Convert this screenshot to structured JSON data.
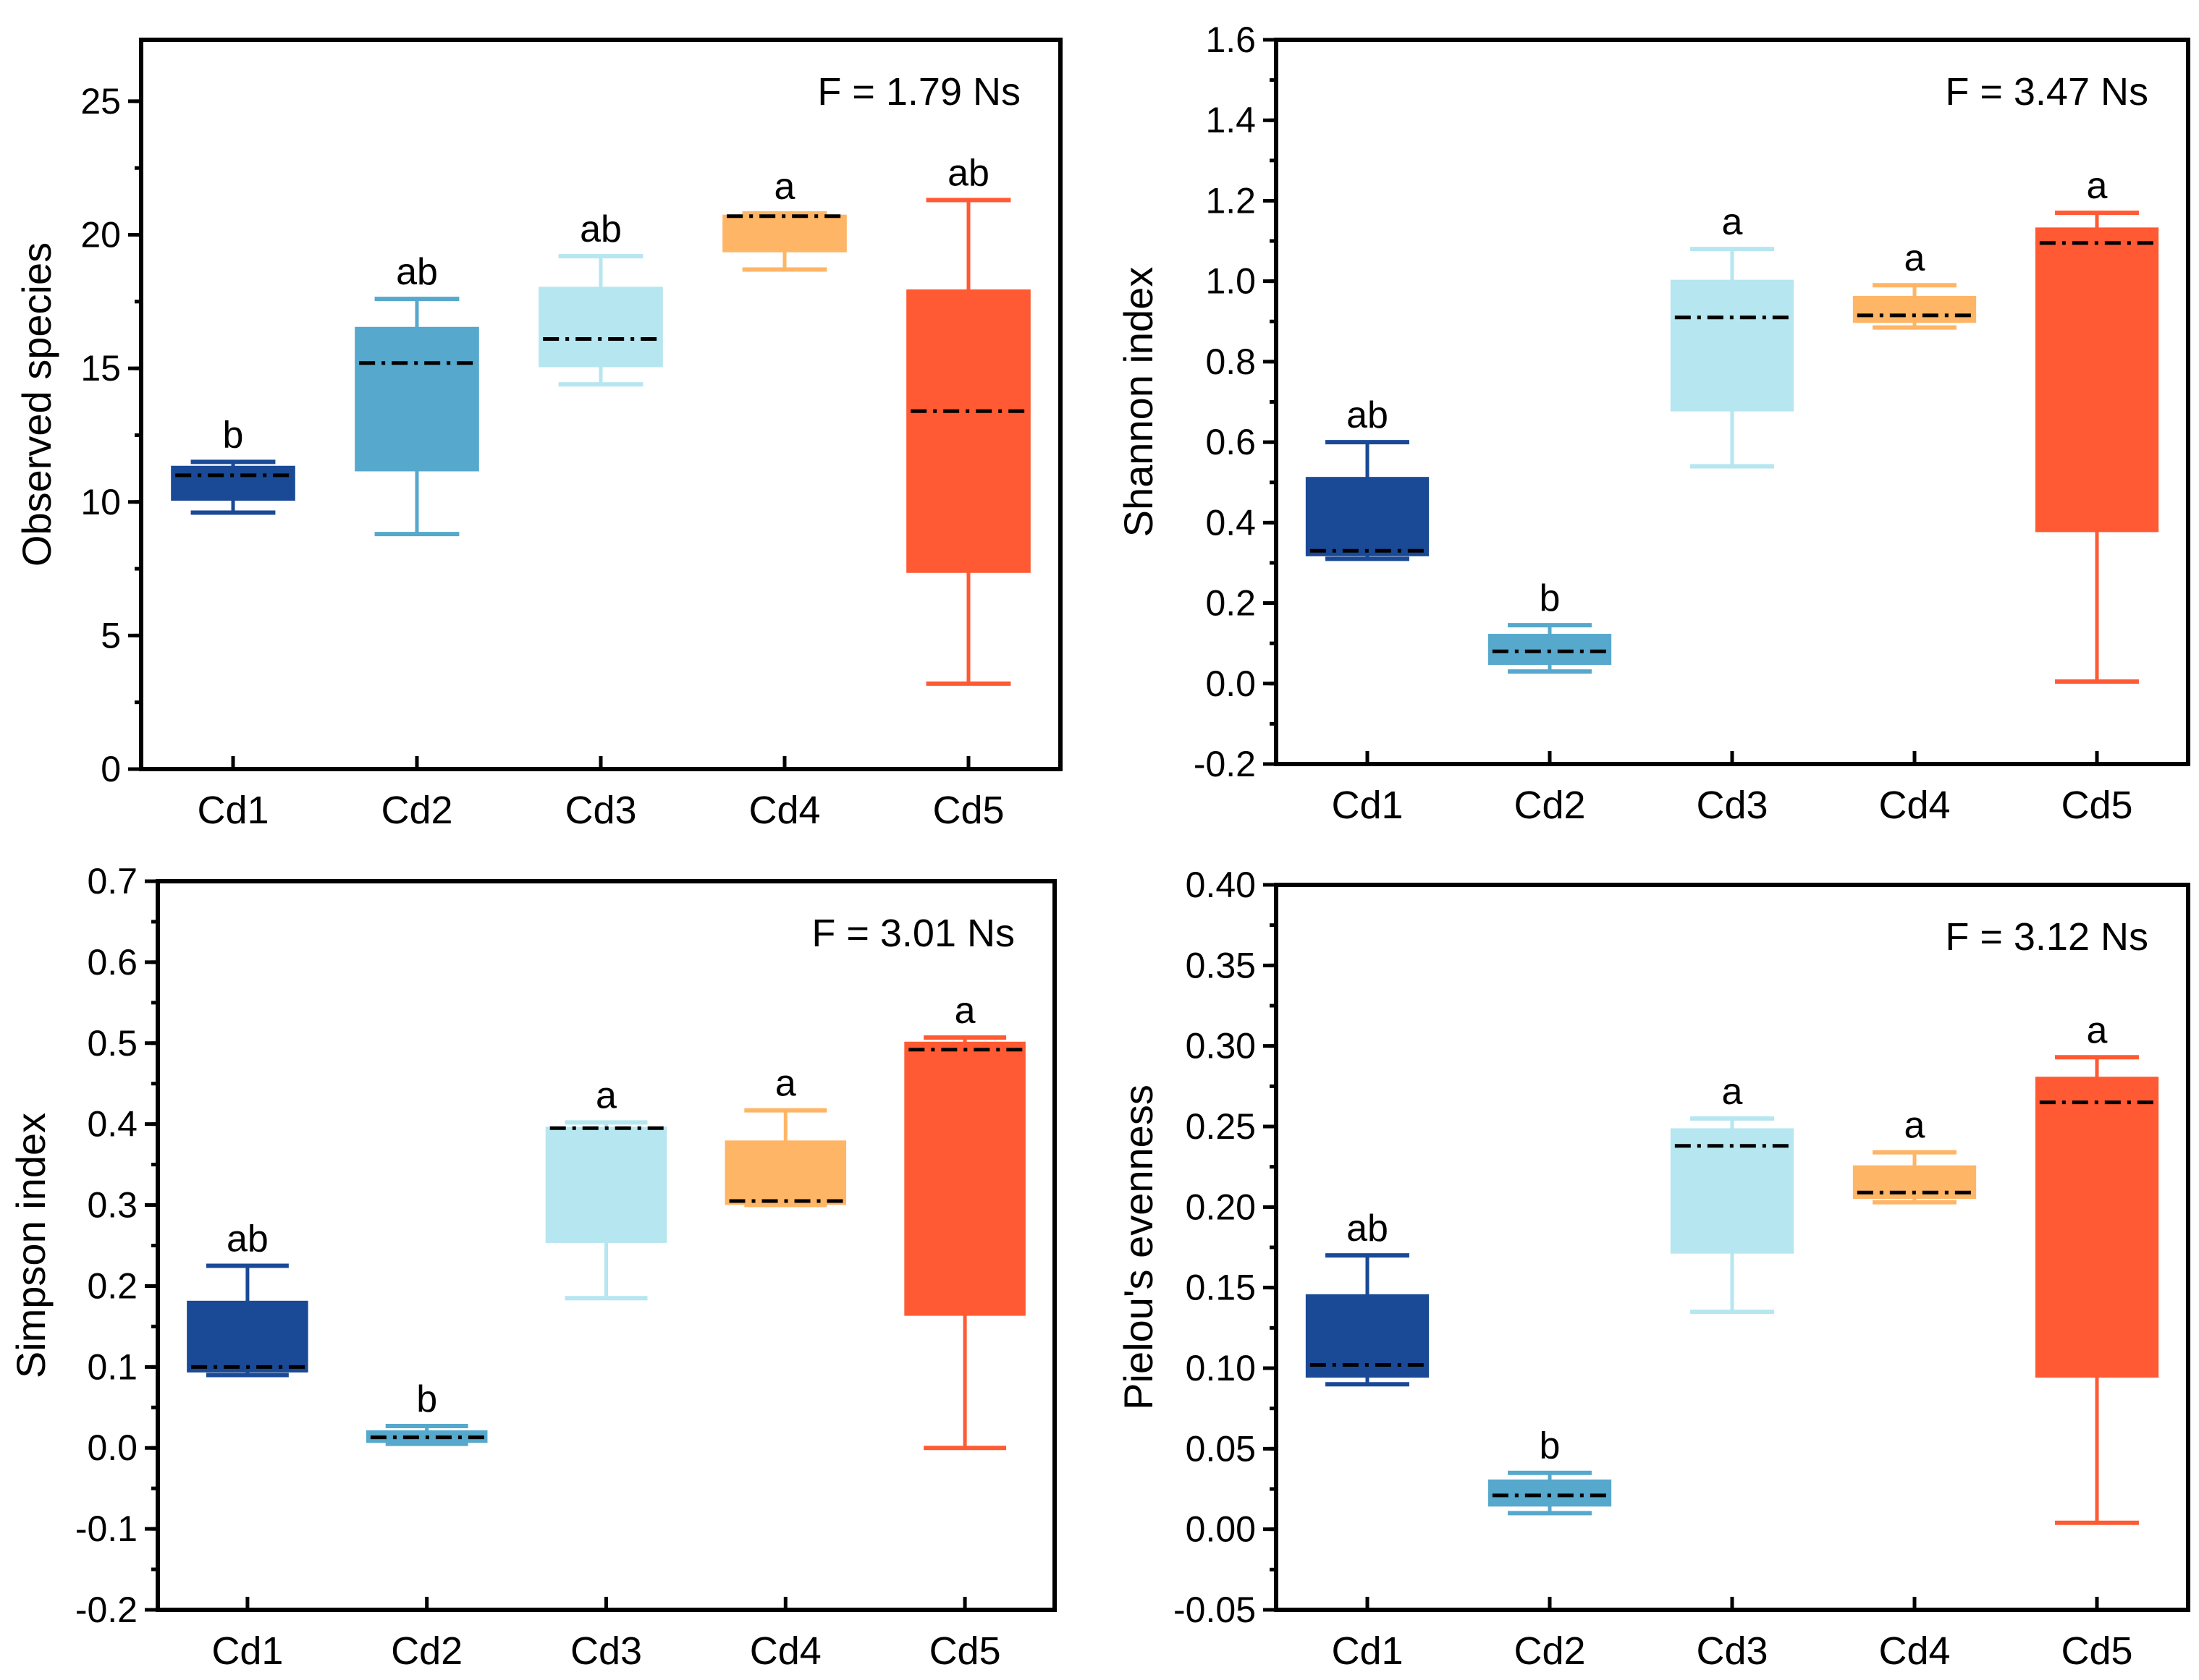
{
  "chart_data": [
    {
      "type": "box",
      "ylabel": "Observed species",
      "annotation": "F = 1.79 Ns",
      "categories": [
        "Cd1",
        "Cd2",
        "Cd3",
        "Cd4",
        "Cd5"
      ],
      "ylim": [
        0,
        27.3
      ],
      "yticks": [
        0,
        5,
        10,
        15,
        20,
        25
      ],
      "ytick_labels": [
        "0",
        "5",
        "10",
        "15",
        "20",
        "25"
      ],
      "minor_step": 2.5,
      "boxes": [
        {
          "min": 9.6,
          "q1": 10.1,
          "median": 11.0,
          "q3": 11.3,
          "max": 11.5,
          "letter": "b"
        },
        {
          "min": 8.8,
          "q1": 11.2,
          "median": 15.2,
          "q3": 16.5,
          "max": 17.6,
          "letter": "ab"
        },
        {
          "min": 14.4,
          "q1": 15.1,
          "median": 16.1,
          "q3": 18.0,
          "max": 19.2,
          "letter": "ab"
        },
        {
          "min": 18.7,
          "q1": 19.4,
          "median": 20.7,
          "q3": 20.7,
          "max": 20.8,
          "letter": "a"
        },
        {
          "min": 3.2,
          "q1": 7.4,
          "median": 13.4,
          "q3": 17.9,
          "max": 21.3,
          "letter": "ab"
        }
      ]
    },
    {
      "type": "box",
      "ylabel": "Shannon index",
      "annotation": "F = 3.47 Ns",
      "categories": [
        "Cd1",
        "Cd2",
        "Cd3",
        "Cd4",
        "Cd5"
      ],
      "ylim": [
        -0.2,
        1.6
      ],
      "yticks": [
        -0.2,
        0,
        0.2,
        0.4,
        0.6,
        0.8,
        1.0,
        1.2,
        1.4,
        1.6
      ],
      "ytick_labels": [
        "-0.2",
        "0.0",
        "0.2",
        "0.4",
        "0.6",
        "0.8",
        "1.0",
        "1.2",
        "1.4",
        "1.6"
      ],
      "minor_step": 0.1,
      "boxes": [
        {
          "min": 0.31,
          "q1": 0.32,
          "median": 0.33,
          "q3": 0.51,
          "max": 0.6,
          "letter": "ab"
        },
        {
          "min": 0.03,
          "q1": 0.05,
          "median": 0.08,
          "q3": 0.12,
          "max": 0.145,
          "letter": "b"
        },
        {
          "min": 0.54,
          "q1": 0.68,
          "median": 0.91,
          "q3": 1.0,
          "max": 1.08,
          "letter": "a"
        },
        {
          "min": 0.885,
          "q1": 0.9,
          "median": 0.915,
          "q3": 0.96,
          "max": 0.99,
          "letter": "a"
        },
        {
          "min": 0.005,
          "q1": 0.38,
          "median": 1.095,
          "q3": 1.13,
          "max": 1.17,
          "letter": "a"
        }
      ]
    },
    {
      "type": "box",
      "ylabel": "Simpson index",
      "annotation": "F = 3.01 Ns",
      "categories": [
        "Cd1",
        "Cd2",
        "Cd3",
        "Cd4",
        "Cd5"
      ],
      "ylim": [
        -0.2,
        0.7
      ],
      "yticks": [
        -0.2,
        -0.1,
        0,
        0.1,
        0.2,
        0.3,
        0.4,
        0.5,
        0.6,
        0.7
      ],
      "ytick_labels": [
        "-0.2",
        "-0.1",
        "0.0",
        "0.1",
        "0.2",
        "0.3",
        "0.4",
        "0.5",
        "0.6",
        "0.7"
      ],
      "minor_step": 0.05,
      "boxes": [
        {
          "min": 0.09,
          "q1": 0.095,
          "median": 0.1,
          "q3": 0.18,
          "max": 0.225,
          "letter": "ab"
        },
        {
          "min": 0.005,
          "q1": 0.008,
          "median": 0.013,
          "q3": 0.02,
          "max": 0.027,
          "letter": "b"
        },
        {
          "min": 0.185,
          "q1": 0.255,
          "median": 0.395,
          "q3": 0.395,
          "max": 0.402,
          "letter": "a"
        },
        {
          "min": 0.3,
          "q1": 0.302,
          "median": 0.305,
          "q3": 0.378,
          "max": 0.417,
          "letter": "a"
        },
        {
          "min": 0.0,
          "q1": 0.165,
          "median": 0.492,
          "q3": 0.5,
          "max": 0.507,
          "letter": "a"
        }
      ]
    },
    {
      "type": "box",
      "ylabel": "Pielou's evenness",
      "annotation": "F = 3.12 Ns",
      "categories": [
        "Cd1",
        "Cd2",
        "Cd3",
        "Cd4",
        "Cd5"
      ],
      "ylim": [
        -0.05,
        0.4
      ],
      "yticks": [
        -0.05,
        0,
        0.05,
        0.1,
        0.15,
        0.2,
        0.25,
        0.3,
        0.35,
        0.4
      ],
      "ytick_labels": [
        "-0.05",
        "0.00",
        "0.05",
        "0.10",
        "0.15",
        "0.20",
        "0.25",
        "0.30",
        "0.35",
        "0.40"
      ],
      "minor_step": 0.025,
      "boxes": [
        {
          "min": 0.09,
          "q1": 0.095,
          "median": 0.102,
          "q3": 0.145,
          "max": 0.17,
          "letter": "ab"
        },
        {
          "min": 0.01,
          "q1": 0.015,
          "median": 0.021,
          "q3": 0.03,
          "max": 0.035,
          "letter": "b"
        },
        {
          "min": 0.135,
          "q1": 0.172,
          "median": 0.238,
          "q3": 0.248,
          "max": 0.255,
          "letter": "a"
        },
        {
          "min": 0.203,
          "q1": 0.206,
          "median": 0.209,
          "q3": 0.225,
          "max": 0.234,
          "letter": "a"
        },
        {
          "min": 0.004,
          "q1": 0.095,
          "median": 0.265,
          "q3": 0.28,
          "max": 0.293,
          "letter": "a"
        }
      ]
    }
  ],
  "colors": [
    "#1a4a96",
    "#56a8cc",
    "#b6e6f0",
    "#ffb566",
    "#ff5a33"
  ]
}
